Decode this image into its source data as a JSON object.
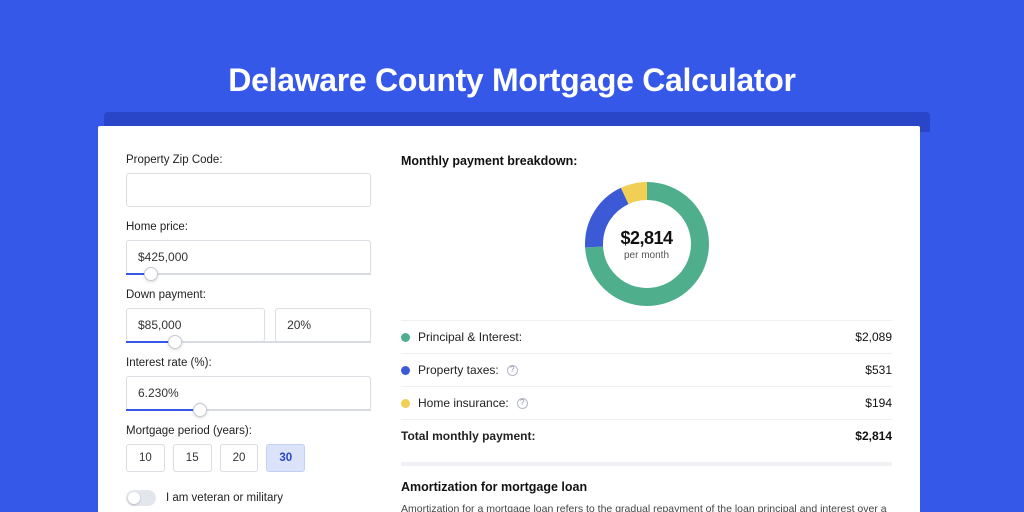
{
  "page": {
    "title": "Delaware County Mortgage Calculator",
    "bg_color": "#3658e8",
    "shadow_color": "#2a46c8",
    "card_bg": "#ffffff"
  },
  "form": {
    "zip": {
      "label": "Property Zip Code:",
      "value": ""
    },
    "home_price": {
      "label": "Home price:",
      "value": "$425,000",
      "slider_pct": 10
    },
    "down": {
      "label": "Down payment:",
      "amount": "$85,000",
      "pct": "20%",
      "slider_pct": 20
    },
    "rate": {
      "label": "Interest rate (%):",
      "value": "6.230%",
      "slider_pct": 30
    },
    "period": {
      "label": "Mortgage period (years):",
      "options": [
        "10",
        "15",
        "20",
        "30"
      ],
      "selected": "30"
    },
    "veteran": {
      "label": "I am veteran or military",
      "checked": false
    }
  },
  "breakdown": {
    "title": "Monthly payment breakdown:",
    "donut": {
      "value": "$2,814",
      "sub": "per month",
      "diameter": 124,
      "stroke": 18,
      "background": "#ffffff",
      "slices": [
        {
          "key": "pi",
          "color": "#4fae8c",
          "pct": 74
        },
        {
          "key": "tax",
          "color": "#3c59d6",
          "pct": 19
        },
        {
          "key": "ins",
          "color": "#f1cf55",
          "pct": 7
        }
      ]
    },
    "rows": [
      {
        "dot": "#4fae8c",
        "label": "Principal & Interest:",
        "help": false,
        "value": "$2,089"
      },
      {
        "dot": "#3c59d6",
        "label": "Property taxes:",
        "help": true,
        "value": "$531"
      },
      {
        "dot": "#f1cf55",
        "label": "Home insurance:",
        "help": true,
        "value": "$194"
      }
    ],
    "total": {
      "label": "Total monthly payment:",
      "value": "$2,814"
    }
  },
  "amortization": {
    "title": "Amortization for mortgage loan",
    "text": "Amortization for a mortgage loan refers to the gradual repayment of the loan principal and interest over a specified"
  }
}
